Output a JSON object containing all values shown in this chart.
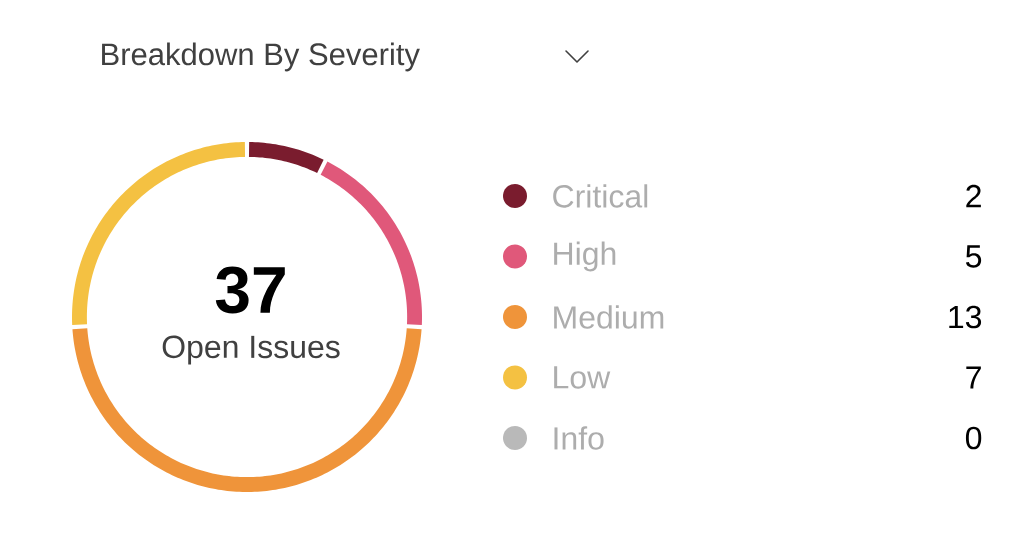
{
  "chart_data": {
    "type": "donut",
    "title": "Breakdown By  Severity",
    "categories": [
      "Critical",
      "High",
      "Medium",
      "Low",
      "Info"
    ],
    "values": [
      2,
      5,
      13,
      7,
      0
    ],
    "colors": [
      "#7a1c2e",
      "#e0587a",
      "#ef943a",
      "#f4c142",
      "#b9b9b9"
    ],
    "value_labels": [
      "2",
      "5",
      "13",
      "7",
      "0"
    ],
    "legend": "right",
    "annotations": [
      "37",
      "Open Issues"
    ]
  }
}
